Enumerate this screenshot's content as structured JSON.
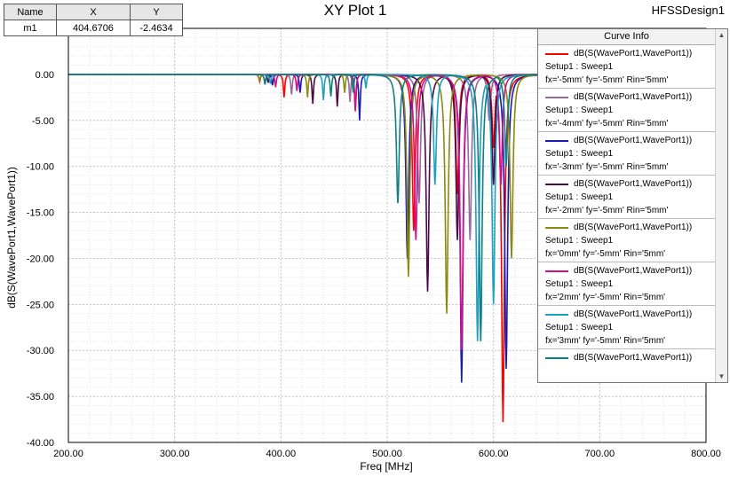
{
  "title": "XY Plot 1",
  "design_name": "HFSSDesign1",
  "marker_table": {
    "headers": [
      "Name",
      "X",
      "Y"
    ],
    "row": [
      "m1",
      "404.6706",
      "-2.4634"
    ]
  },
  "legend": {
    "title": "Curve Info",
    "entries": [
      {
        "trace": "dB(S(WavePort1,WavePort1))",
        "setup": "Setup1 : Sweep1",
        "params": "fx='-5mm' fy='-5mm' Rin='5mm'",
        "color": "#ff0000"
      },
      {
        "trace": "dB(S(WavePort1,WavePort1))",
        "setup": "Setup1 : Sweep1",
        "params": "fx='-4mm' fy='-5mm' Rin='5mm'",
        "color": "#9a6a9a"
      },
      {
        "trace": "dB(S(WavePort1,WavePort1))",
        "setup": "Setup1 : Sweep1",
        "params": "fx='-3mm' fy='-5mm' Rin='5mm'",
        "color": "#1a1ab0"
      },
      {
        "trace": "dB(S(WavePort1,WavePort1))",
        "setup": "Setup1 : Sweep1",
        "params": "fx='-2mm' fy='-5mm' Rin='5mm'",
        "color": "#4a0a4a"
      },
      {
        "trace": "dB(S(WavePort1,WavePort1))",
        "setup": "Setup1 : Sweep1",
        "params": "fx='0mm' fy='-5mm' Rin='5mm'",
        "color": "#8a8a10"
      },
      {
        "trace": "dB(S(WavePort1,WavePort1))",
        "setup": "Setup1 : Sweep1",
        "params": "fx='2mm' fy='-5mm' Rin='5mm'",
        "color": "#d0108a"
      },
      {
        "trace": "dB(S(WavePort1,WavePort1))",
        "setup": "Setup1 : Sweep1",
        "params": "fx='3mm' fy='-5mm' Rin='5mm'",
        "color": "#20a0c0"
      },
      {
        "trace": "dB(S(WavePort1,WavePort1))",
        "setup": "",
        "params": "",
        "color": "#108080"
      }
    ]
  },
  "chart_data": {
    "type": "line",
    "xlabel": "Freq [MHz]",
    "ylabel": "dB(S(WavePort1,WavePort1))",
    "xlim": [
      200,
      800
    ],
    "ylim": [
      -40,
      5
    ],
    "xticks": [
      "200.00",
      "300.00",
      "400.00",
      "500.00",
      "600.00",
      "700.00",
      "800.00"
    ],
    "yticks": [
      "0.00",
      "-5.00",
      "-10.00",
      "-15.00",
      "-20.00",
      "-25.00",
      "-30.00",
      "-35.00",
      "-40.00"
    ],
    "grid": true,
    "series_note": "many overlapping parametric traces; dips (resonances) listed as [freq MHz, min dB]",
    "series": [
      {
        "color": "#ff0000",
        "dips": [
          [
            380,
            -0.8
          ],
          [
            403,
            -2.5
          ],
          [
            470,
            -4.0
          ],
          [
            525,
            -17
          ],
          [
            566,
            -13
          ],
          [
            600,
            -8
          ],
          [
            609,
            -37.8
          ]
        ]
      },
      {
        "color": "#9a6a9a",
        "dips": [
          [
            385,
            -1.0
          ],
          [
            410,
            -2.2
          ],
          [
            465,
            -3.0
          ],
          [
            530,
            -14
          ],
          [
            578,
            -18
          ],
          [
            596,
            -5
          ]
        ]
      },
      {
        "color": "#1a1ab0",
        "dips": [
          [
            392,
            -1.2
          ],
          [
            418,
            -2.0
          ],
          [
            474,
            -5.0
          ],
          [
            519,
            -20
          ],
          [
            570,
            -33.5
          ],
          [
            612,
            -32
          ]
        ]
      },
      {
        "color": "#4a0a4a",
        "dips": [
          [
            388,
            -0.9
          ],
          [
            430,
            -3.2
          ],
          [
            453,
            -3.5
          ],
          [
            538,
            -23.6
          ],
          [
            566,
            -18
          ],
          [
            600,
            -12
          ]
        ]
      },
      {
        "color": "#8a8a10",
        "dips": [
          [
            380,
            -0.7
          ],
          [
            425,
            -2.5
          ],
          [
            460,
            -2.0
          ],
          [
            520,
            -22
          ],
          [
            556,
            -26
          ],
          [
            617,
            -20
          ]
        ]
      },
      {
        "color": "#d0108a",
        "dips": [
          [
            395,
            -1.4
          ],
          [
            415,
            -1.8
          ],
          [
            470,
            -3.8
          ],
          [
            527,
            -18
          ],
          [
            570,
            -30
          ],
          [
            607,
            -12
          ]
        ]
      },
      {
        "color": "#20a0c0",
        "dips": [
          [
            390,
            -1.0
          ],
          [
            440,
            -2.8
          ],
          [
            480,
            -1.5
          ],
          [
            545,
            -12
          ],
          [
            585,
            -29
          ],
          [
            600,
            -25
          ]
        ]
      },
      {
        "color": "#108080",
        "dips": [
          [
            385,
            -1.1
          ],
          [
            447,
            -2.4
          ],
          [
            468,
            -2.0
          ],
          [
            510,
            -14
          ],
          [
            588,
            -29
          ],
          [
            612,
            -10
          ]
        ]
      }
    ]
  }
}
